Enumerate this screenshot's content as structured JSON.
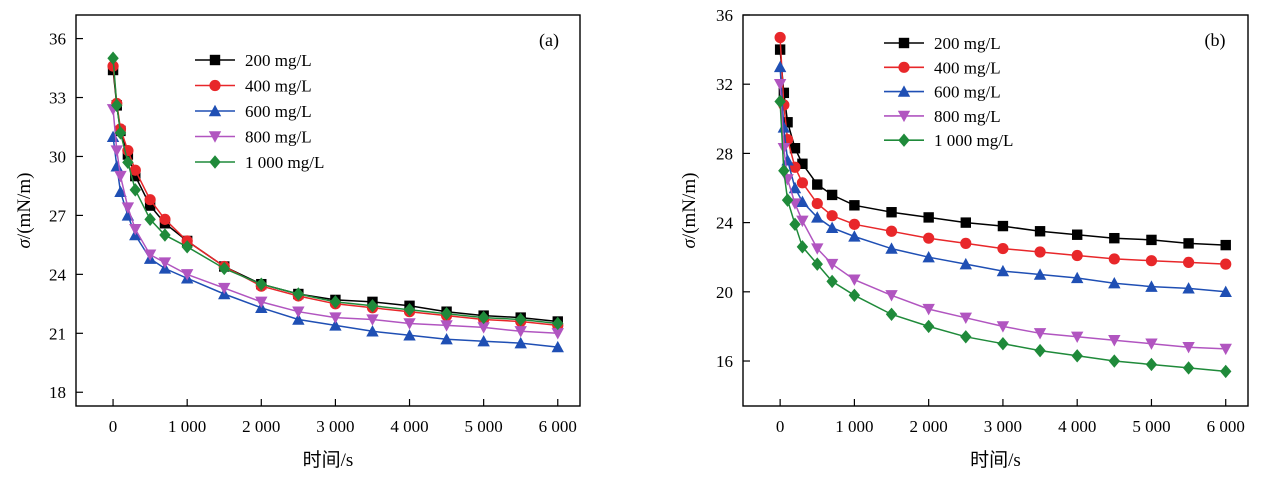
{
  "chart_data": [
    {
      "type": "line",
      "panel_label": "(a)",
      "xlabel": "时间/s",
      "ylabel_symbol": "σ",
      "ylabel_unit": "/(mN/m)",
      "xlim": [
        -500,
        6300
      ],
      "ylim": [
        17.3,
        37.2
      ],
      "xticks": [
        0,
        1000,
        2000,
        3000,
        4000,
        5000,
        6000
      ],
      "xtick_labels": [
        "0",
        "1 000",
        "2 000",
        "3 000",
        "4 000",
        "5 000",
        "6 000"
      ],
      "yticks": [
        18,
        21,
        24,
        27,
        30,
        33,
        36
      ],
      "yticks_labels": [
        "18",
        "21",
        "24",
        "27",
        "30",
        "33",
        "36"
      ],
      "legend_position": "top-center",
      "grid": false,
      "x": [
        0,
        50,
        100,
        200,
        300,
        500,
        700,
        1000,
        1500,
        2000,
        2500,
        3000,
        3500,
        4000,
        4500,
        5000,
        5500,
        6000
      ],
      "series": [
        {
          "name": "200 mg/L",
          "color": "#000000",
          "marker": "square",
          "values": [
            34.4,
            32.6,
            31.3,
            30.1,
            29.0,
            27.5,
            26.6,
            25.7,
            24.4,
            23.5,
            23.0,
            22.7,
            22.6,
            22.4,
            22.1,
            21.9,
            21.8,
            21.6
          ]
        },
        {
          "name": "400 mg/L",
          "color": "#e8272a",
          "marker": "circle",
          "values": [
            34.6,
            32.7,
            31.4,
            30.3,
            29.3,
            27.8,
            26.8,
            25.7,
            24.4,
            23.4,
            22.9,
            22.5,
            22.3,
            22.1,
            21.9,
            21.7,
            21.6,
            21.4
          ]
        },
        {
          "name": "600 mg/L",
          "color": "#1f4fb4",
          "marker": "triangle-up",
          "values": [
            31.0,
            29.5,
            28.2,
            27.0,
            26.0,
            24.8,
            24.3,
            23.8,
            23.0,
            22.3,
            21.7,
            21.4,
            21.1,
            20.9,
            20.7,
            20.6,
            20.5,
            20.3
          ]
        },
        {
          "name": "800 mg/L",
          "color": "#b155c0",
          "marker": "triangle-down",
          "values": [
            32.4,
            30.3,
            29.0,
            27.4,
            26.3,
            25.0,
            24.6,
            24.0,
            23.3,
            22.6,
            22.1,
            21.8,
            21.7,
            21.5,
            21.4,
            21.3,
            21.1,
            21.0
          ]
        },
        {
          "name": "1 000 mg/L",
          "color": "#1f8a3a",
          "marker": "diamond",
          "values": [
            35.0,
            32.6,
            31.2,
            29.7,
            28.3,
            26.8,
            26.0,
            25.4,
            24.3,
            23.5,
            23.0,
            22.6,
            22.4,
            22.2,
            22.0,
            21.8,
            21.7,
            21.5
          ]
        }
      ]
    },
    {
      "type": "line",
      "panel_label": "(b)",
      "xlabel": "时间/s",
      "ylabel_symbol": "σ",
      "ylabel_unit": "/(mN/m)",
      "xlim": [
        -500,
        6300
      ],
      "ylim": [
        13.4,
        36.0
      ],
      "xticks": [
        0,
        1000,
        2000,
        3000,
        4000,
        5000,
        6000
      ],
      "xtick_labels": [
        "0",
        "1 000",
        "2 000",
        "3 000",
        "4 000",
        "5 000",
        "6 000"
      ],
      "yticks": [
        16,
        20,
        24,
        28,
        32,
        36
      ],
      "yticks_labels": [
        "16",
        "20",
        "24",
        "28",
        "32",
        "36"
      ],
      "legend_position": "top-center",
      "grid": false,
      "x": [
        0,
        50,
        100,
        200,
        300,
        500,
        700,
        1000,
        1500,
        2000,
        2500,
        3000,
        3500,
        4000,
        4500,
        5000,
        5500,
        6000
      ],
      "series": [
        {
          "name": "200 mg/L",
          "color": "#000000",
          "marker": "square",
          "values": [
            34.0,
            31.5,
            29.8,
            28.3,
            27.4,
            26.2,
            25.6,
            25.0,
            24.6,
            24.3,
            24.0,
            23.8,
            23.5,
            23.3,
            23.1,
            23.0,
            22.8,
            22.7
          ]
        },
        {
          "name": "400 mg/L",
          "color": "#e8272a",
          "marker": "circle",
          "values": [
            34.7,
            30.8,
            28.8,
            27.2,
            26.3,
            25.1,
            24.4,
            23.9,
            23.5,
            23.1,
            22.8,
            22.5,
            22.3,
            22.1,
            21.9,
            21.8,
            21.7,
            21.6
          ]
        },
        {
          "name": "600 mg/L",
          "color": "#1f4fb4",
          "marker": "triangle-up",
          "values": [
            33.0,
            29.5,
            27.6,
            26.0,
            25.2,
            24.3,
            23.7,
            23.2,
            22.5,
            22.0,
            21.6,
            21.2,
            21.0,
            20.8,
            20.5,
            20.3,
            20.2,
            20.0
          ]
        },
        {
          "name": "800 mg/L",
          "color": "#b155c0",
          "marker": "triangle-down",
          "values": [
            32.0,
            28.3,
            26.5,
            25.1,
            24.1,
            22.5,
            21.6,
            20.7,
            19.8,
            19.0,
            18.5,
            18.0,
            17.6,
            17.4,
            17.2,
            17.0,
            16.8,
            16.7
          ]
        },
        {
          "name": "1 000 mg/L",
          "color": "#1f8a3a",
          "marker": "diamond",
          "values": [
            31.0,
            27.0,
            25.3,
            23.9,
            22.6,
            21.6,
            20.6,
            19.8,
            18.7,
            18.0,
            17.4,
            17.0,
            16.6,
            16.3,
            16.0,
            15.8,
            15.6,
            15.4
          ]
        }
      ]
    }
  ]
}
